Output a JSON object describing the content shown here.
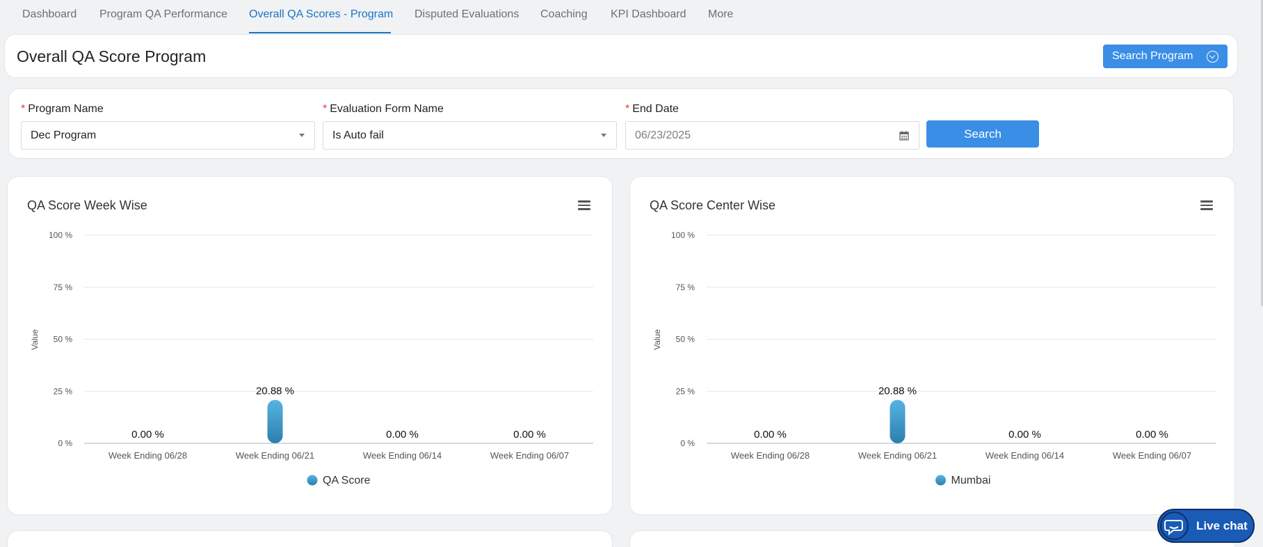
{
  "nav": {
    "tabs": [
      {
        "label": "Dashboard",
        "active": false
      },
      {
        "label": "Program QA Performance",
        "active": false
      },
      {
        "label": "Overall QA Scores - Program",
        "active": true
      },
      {
        "label": "Disputed Evaluations",
        "active": false
      },
      {
        "label": "Coaching",
        "active": false
      },
      {
        "label": "KPI Dashboard",
        "active": false
      },
      {
        "label": "More",
        "active": false
      }
    ]
  },
  "header": {
    "title": "Overall QA Score Program",
    "search_program_label": "Search Program"
  },
  "filters": {
    "required_mark": "*",
    "program_name": {
      "label": "Program Name",
      "value": "Dec Program"
    },
    "evaluation_form": {
      "label": "Evaluation Form Name",
      "value": "Is Auto fail"
    },
    "end_date": {
      "label": "End Date",
      "value": "06/23/2025"
    },
    "search_label": "Search"
  },
  "colors": {
    "accent": "#1a73c8",
    "button": "#3a8ee6",
    "bar_top": "#56b4e2",
    "bar_bottom": "#2b7fae",
    "required": "#e53935"
  },
  "chart_data": [
    {
      "type": "bar",
      "title": "QA Score Week Wise",
      "ylabel": "Value",
      "xlabel": "",
      "categories": [
        "Week Ending 06/28",
        "Week Ending 06/21",
        "Week Ending 06/14",
        "Week Ending 06/07"
      ],
      "series": [
        {
          "name": "QA Score",
          "values": [
            0,
            20.88,
            0,
            0
          ]
        }
      ],
      "data_labels": [
        "0.00 %",
        "20.88 %",
        "0.00 %",
        "0.00 %"
      ],
      "yticks": [
        "0 %",
        "25 %",
        "50 %",
        "75 %",
        "100 %"
      ],
      "ylim": [
        0,
        100
      ],
      "grid": true,
      "legend": "bottom-center"
    },
    {
      "type": "bar",
      "title": "QA Score Center Wise",
      "ylabel": "Value",
      "xlabel": "",
      "categories": [
        "Week Ending 06/28",
        "Week Ending 06/21",
        "Week Ending 06/14",
        "Week Ending 06/07"
      ],
      "series": [
        {
          "name": "Mumbai",
          "values": [
            0,
            20.88,
            0,
            0
          ]
        }
      ],
      "data_labels": [
        "0.00 %",
        "20.88 %",
        "0.00 %",
        "0.00 %"
      ],
      "yticks": [
        "0 %",
        "25 %",
        "50 %",
        "75 %",
        "100 %"
      ],
      "ylim": [
        0,
        100
      ],
      "grid": true,
      "legend": "bottom-center"
    }
  ],
  "live_chat": {
    "label": "Live chat"
  }
}
